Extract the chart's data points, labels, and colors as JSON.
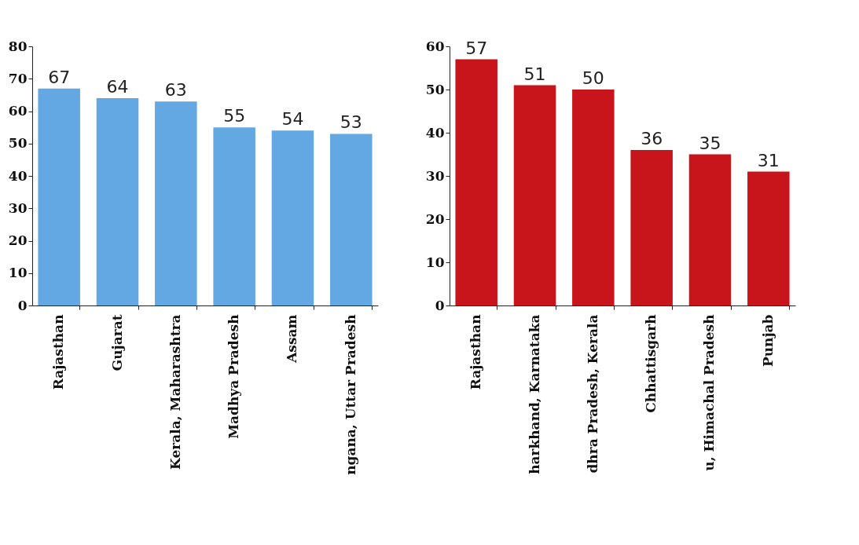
{
  "chart_data": [
    {
      "type": "bar",
      "categories": [
        "Rajasthan",
        "Gujarat",
        "Kerala, Maharashtra",
        "Madhya Pradesh",
        "Assam",
        "ngana, Uttar Pradesh"
      ],
      "values": [
        67,
        64,
        63,
        55,
        54,
        53
      ],
      "color": "#63a8e3",
      "ylim": [
        0,
        80
      ],
      "yticks": [
        0,
        10,
        20,
        30,
        40,
        50,
        60,
        70,
        80
      ],
      "data_labels": true,
      "grid": false
    },
    {
      "type": "bar",
      "categories": [
        "Rajasthan",
        "harkhand, Karnataka",
        "dhra Pradesh, Kerala",
        "Chhattisgarh",
        "u, Himachal Pradesh",
        "Punjab"
      ],
      "values": [
        57,
        51,
        50,
        36,
        35,
        31
      ],
      "color": "#c8151b",
      "ylim": [
        0,
        60
      ],
      "yticks": [
        0,
        10,
        20,
        30,
        40,
        50,
        60
      ],
      "data_labels": true,
      "grid": false
    }
  ]
}
